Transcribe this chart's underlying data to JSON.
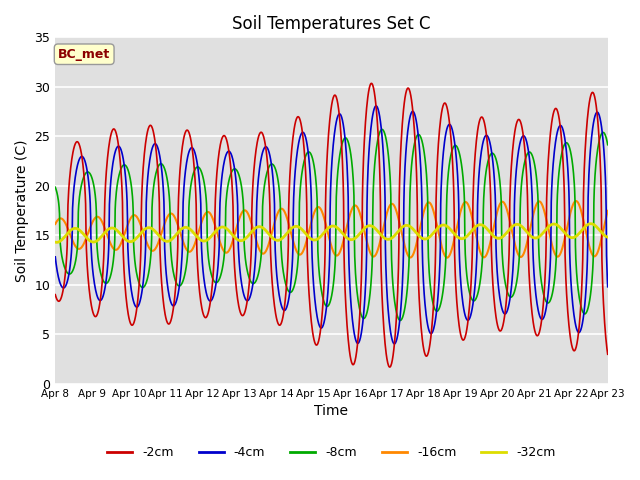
{
  "title": "Soil Temperatures Set C",
  "xlabel": "Time",
  "ylabel": "Soil Temperature (C)",
  "annotation": "BC_met",
  "ylim": [
    0,
    35
  ],
  "series": {
    "-2cm": {
      "color": "#cc0000",
      "lw": 1.2
    },
    "-4cm": {
      "color": "#0000cc",
      "lw": 1.2
    },
    "-8cm": {
      "color": "#00aa00",
      "lw": 1.2
    },
    "-16cm": {
      "color": "#ff8800",
      "lw": 1.5
    },
    "-32cm": {
      "color": "#dddd00",
      "lw": 2.0
    }
  },
  "bg_color": "#e0e0e0",
  "grid_color": "#ffffff",
  "xtick_labels": [
    "Apr 8",
    "Apr 9",
    "Apr 10",
    "Apr 11",
    "Apr 12",
    "Apr 13",
    "Apr 14",
    "Apr 15",
    "Apr 16",
    "Apr 17",
    "Apr 18",
    "Apr 19",
    "Apr 20",
    "Apr 21",
    "Apr 22",
    "Apr 23"
  ]
}
